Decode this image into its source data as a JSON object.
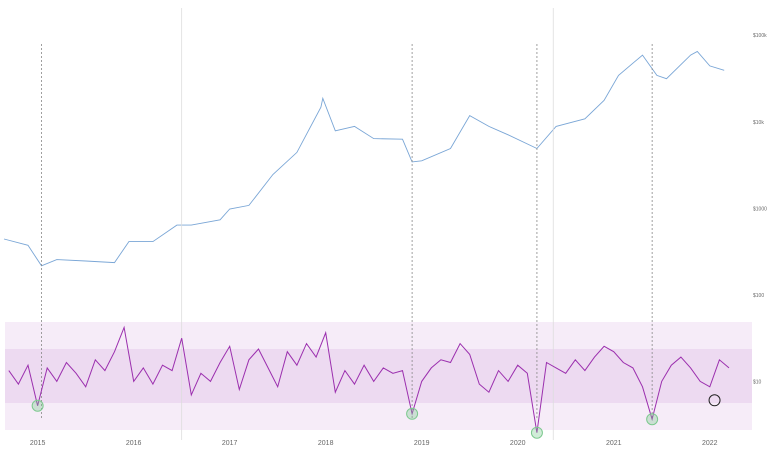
{
  "chart_data": [
    {
      "type": "line",
      "log_scale": true,
      "color": "#7aa6d6",
      "x": [
        2014.65,
        2014.9,
        2015.04,
        2015.2,
        2015.5,
        2015.8,
        2015.95,
        2016.2,
        2016.45,
        2016.6,
        2016.9,
        2017.0,
        2017.2,
        2017.45,
        2017.7,
        2017.95,
        2017.97,
        2018.1,
        2018.3,
        2018.5,
        2018.8,
        2018.9,
        2019.0,
        2019.3,
        2019.5,
        2019.7,
        2019.9,
        2020.2,
        2020.4,
        2020.7,
        2020.9,
        2021.05,
        2021.3,
        2021.45,
        2021.55,
        2021.8,
        2021.87,
        2022.0,
        2022.15
      ],
      "values": [
        450,
        380,
        220,
        260,
        250,
        240,
        420,
        420,
        650,
        650,
        750,
        1000,
        1100,
        2500,
        4500,
        15000,
        19000,
        8000,
        9000,
        6500,
        6400,
        3500,
        3600,
        5000,
        12000,
        9000,
        7200,
        5000,
        9000,
        11000,
        18000,
        35000,
        60000,
        35000,
        32000,
        60000,
        66000,
        45000,
        40000
      ],
      "xlim": [
        2014.66,
        2022.44
      ],
      "ylim": [
        10,
        260000
      ],
      "yticks": [
        {
          "value": 100000,
          "label": "$100k"
        },
        {
          "value": 10000,
          "label": "$10k"
        },
        {
          "value": 1000,
          "label": "$1000"
        },
        {
          "value": 100,
          "label": "$100"
        },
        {
          "value": 10,
          "label": "$10"
        }
      ]
    },
    {
      "type": "oscillator",
      "color": "#9b2fae",
      "x": [
        2014.7,
        2014.8,
        2014.9,
        2015.0,
        2015.1,
        2015.2,
        2015.3,
        2015.4,
        2015.5,
        2015.6,
        2015.7,
        2015.8,
        2015.9,
        2016.0,
        2016.1,
        2016.2,
        2016.3,
        2016.4,
        2016.5,
        2016.6,
        2016.7,
        2016.8,
        2016.9,
        2017.0,
        2017.1,
        2017.2,
        2017.3,
        2017.4,
        2017.5,
        2017.6,
        2017.7,
        2017.8,
        2017.9,
        2018.0,
        2018.1,
        2018.2,
        2018.3,
        2018.4,
        2018.5,
        2018.6,
        2018.7,
        2018.8,
        2018.9,
        2019.0,
        2019.1,
        2019.2,
        2019.3,
        2019.4,
        2019.5,
        2019.6,
        2019.7,
        2019.8,
        2019.9,
        2020.0,
        2020.1,
        2020.2,
        2020.3,
        2020.4,
        2020.5,
        2020.6,
        2020.7,
        2020.8,
        2020.9,
        2021.0,
        2021.1,
        2021.2,
        2021.3,
        2021.4,
        2021.5,
        2021.6,
        2021.7,
        2021.8,
        2021.9,
        2022.0,
        2022.1,
        2022.2
      ],
      "values": [
        0.2,
        -0.3,
        0.4,
        -1.1,
        0.3,
        -0.2,
        0.5,
        0.1,
        -0.4,
        0.6,
        0.2,
        0.9,
        1.8,
        -0.2,
        0.3,
        -0.3,
        0.4,
        0.2,
        1.4,
        -0.7,
        0.1,
        -0.2,
        0.5,
        1.1,
        -0.5,
        0.6,
        1.0,
        0.3,
        -0.4,
        0.9,
        0.4,
        1.2,
        0.7,
        1.6,
        -0.6,
        0.2,
        -0.3,
        0.4,
        -0.2,
        0.3,
        0.1,
        0.2,
        -1.4,
        -0.2,
        0.3,
        0.6,
        0.5,
        1.2,
        0.8,
        -0.3,
        -0.6,
        0.2,
        -0.2,
        0.4,
        0.1,
        -2.1,
        0.5,
        0.3,
        0.1,
        0.6,
        0.2,
        0.7,
        1.1,
        0.9,
        0.5,
        0.3,
        -0.4,
        -1.6,
        -0.2,
        0.4,
        0.7,
        0.3,
        -0.2,
        -0.4,
        0.6,
        0.3
      ],
      "xlim": [
        2014.66,
        2022.44
      ],
      "ylim": [
        -2,
        2
      ],
      "xticks": [
        2015,
        2016,
        2017,
        2018,
        2019,
        2020,
        2021,
        2022
      ],
      "bands": [
        [
          -2,
          2
        ],
        [
          -1,
          1
        ]
      ],
      "band_color": "#9b2fae",
      "events": [
        2015.04,
        2018.9,
        2020.2,
        2021.4
      ],
      "halvings": [
        2016.5,
        2020.37
      ],
      "markers": [
        {
          "x": 2015.0,
          "y": -1.1,
          "color": "#7cc98e"
        },
        {
          "x": 2018.9,
          "y": -1.4,
          "color": "#7cc98e"
        },
        {
          "x": 2020.2,
          "y": -2.1,
          "color": "#7cc98e"
        },
        {
          "x": 2021.4,
          "y": -1.6,
          "color": "#7cc98e"
        },
        {
          "x": 2022.05,
          "y": -0.9,
          "color": "#222222"
        }
      ]
    }
  ]
}
